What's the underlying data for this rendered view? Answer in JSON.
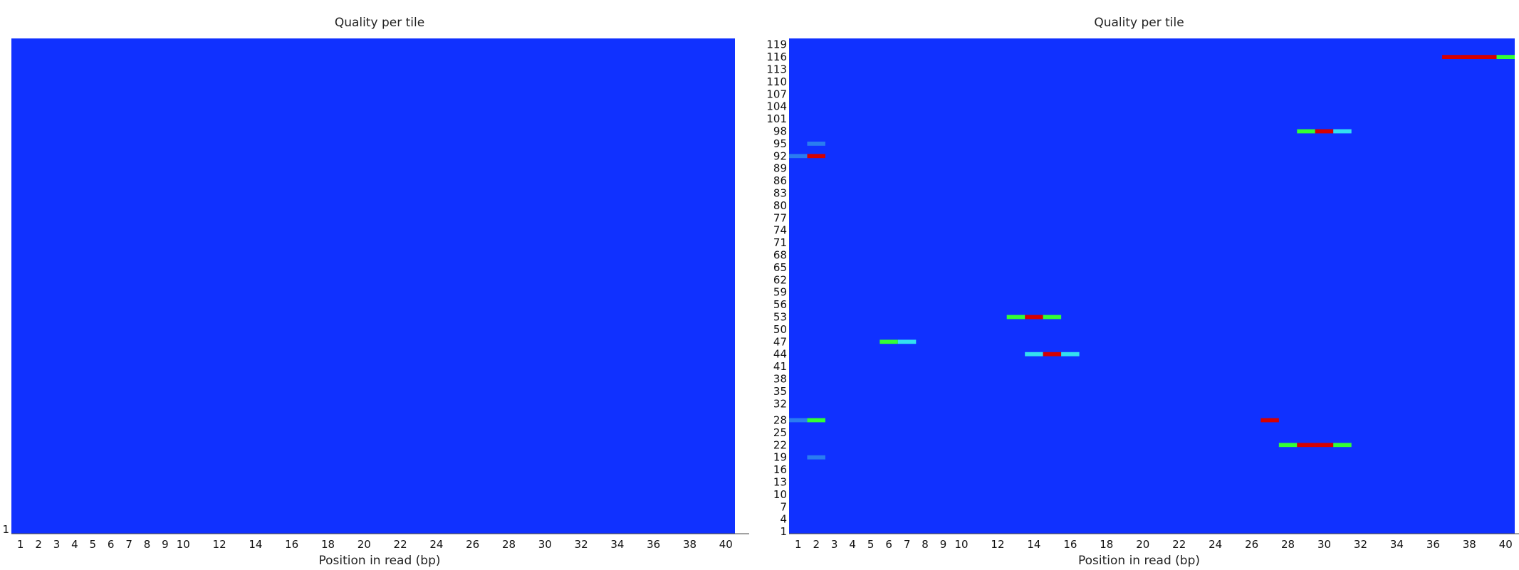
{
  "colors": {
    "low": "#1031ff",
    "cyan": "#33e0f0",
    "green": "#33ff33",
    "red": "#d60000"
  },
  "chart_data": [
    {
      "type": "heatmap",
      "title": "Quality per tile",
      "xlabel": "Position in read (bp)",
      "ylabel": "",
      "x_ticks": [
        "1",
        "2",
        "3",
        "4",
        "5",
        "6",
        "7",
        "8",
        "9",
        "10",
        "12",
        "14",
        "16",
        "18",
        "20",
        "22",
        "24",
        "26",
        "28",
        "30",
        "32",
        "34",
        "36",
        "38",
        "40"
      ],
      "y_ticks": [
        "1"
      ],
      "cells": []
    },
    {
      "type": "heatmap",
      "title": "Quality per tile",
      "xlabel": "Position in read (bp)",
      "ylabel": "",
      "x_ticks": [
        "1",
        "2",
        "3",
        "4",
        "5",
        "6",
        "7",
        "8",
        "9",
        "10",
        "12",
        "14",
        "16",
        "18",
        "20",
        "22",
        "24",
        "26",
        "28",
        "30",
        "32",
        "34",
        "36",
        "38",
        "40"
      ],
      "y_ticks": [
        "1",
        "4",
        "7",
        "10",
        "13",
        "16",
        "19",
        "22",
        "25",
        "28",
        "32",
        "35",
        "38",
        "41",
        "44",
        "47",
        "50",
        "53",
        "56",
        "59",
        "62",
        "65",
        "68",
        "71",
        "74",
        "77",
        "80",
        "83",
        "86",
        "89",
        "92",
        "95",
        "98",
        "101",
        "104",
        "107",
        "110",
        "113",
        "116",
        "119"
      ],
      "cells": [
        {
          "x": "2",
          "y": "92",
          "level": "red"
        },
        {
          "x": "1",
          "y": "92",
          "level": "low-mid"
        },
        {
          "x": "2",
          "y": "95",
          "level": "low-mid"
        },
        {
          "x": "1",
          "y": "28",
          "level": "low-mid"
        },
        {
          "x": "2",
          "y": "28",
          "level": "green"
        },
        {
          "x": "2",
          "y": "19",
          "level": "low-mid"
        },
        {
          "x": "6",
          "y": "47",
          "level": "green"
        },
        {
          "x": "7",
          "y": "47",
          "level": "cyan"
        },
        {
          "x": "14",
          "y": "53",
          "level": "red"
        },
        {
          "x": "13",
          "y": "53",
          "level": "green"
        },
        {
          "x": "15",
          "y": "53",
          "level": "green"
        },
        {
          "x": "14",
          "y": "44",
          "level": "cyan"
        },
        {
          "x": "15",
          "y": "44",
          "level": "red"
        },
        {
          "x": "16",
          "y": "44",
          "level": "cyan"
        },
        {
          "x": "27",
          "y": "28",
          "level": "red"
        },
        {
          "x": "28",
          "y": "22",
          "level": "green"
        },
        {
          "x": "29",
          "y": "22",
          "level": "red"
        },
        {
          "x": "30",
          "y": "22",
          "level": "red"
        },
        {
          "x": "31",
          "y": "22",
          "level": "green"
        },
        {
          "x": "29",
          "y": "98",
          "level": "green"
        },
        {
          "x": "30",
          "y": "98",
          "level": "red"
        },
        {
          "x": "31",
          "y": "98",
          "level": "cyan"
        },
        {
          "x": "37",
          "y": "116",
          "level": "red"
        },
        {
          "x": "38",
          "y": "116",
          "level": "red"
        },
        {
          "x": "39",
          "y": "116",
          "level": "red"
        },
        {
          "x": "40",
          "y": "116",
          "level": "green"
        }
      ]
    }
  ]
}
